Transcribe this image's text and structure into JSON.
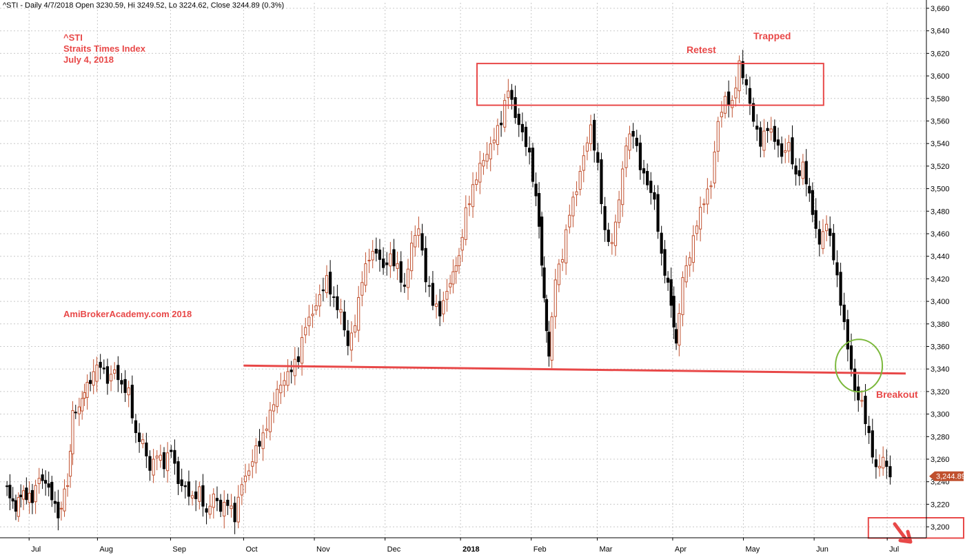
{
  "header": {
    "text": "^STI - Daily 4/7/2018 Open 3230.59, Hi 3249.52, Lo 3224.62, Close 3244.89 (0.3%)"
  },
  "colors": {
    "up": "#c0502e",
    "down": "#000000",
    "annotation": "#e84848",
    "circle": "#7ab83a",
    "grid": "#c8c8c8",
    "badge": "#c0502e"
  },
  "chart_data": {
    "type": "candlestick",
    "title": "^STI Straits Times Index July 4, 2018",
    "ylim": [
      3190,
      3670
    ],
    "y_ticks": [
      3200,
      3220,
      3240,
      3260,
      3280,
      3300,
      3320,
      3340,
      3360,
      3380,
      3400,
      3420,
      3440,
      3460,
      3480,
      3500,
      3520,
      3540,
      3560,
      3580,
      3600,
      3620,
      3640,
      3660
    ],
    "y_tick_labels": [
      "3,200",
      "3,220",
      "3,240",
      "3,260",
      "3,280",
      "3,300",
      "3,320",
      "3,340",
      "3,360",
      "3,380",
      "3,400",
      "3,420",
      "3,440",
      "3,460",
      "3,480",
      "3,500",
      "3,520",
      "3,540",
      "3,560",
      "3,580",
      "3,600",
      "3,620",
      "3,640",
      "3,660"
    ],
    "x_start": "2017-06-23",
    "x_end": "2018-07-04",
    "x_labels": [
      {
        "date": "2017-07-03",
        "label": "Jul",
        "bold": false
      },
      {
        "date": "2017-08-01",
        "label": "Aug",
        "bold": false
      },
      {
        "date": "2017-09-01",
        "label": "Sep",
        "bold": false
      },
      {
        "date": "2017-10-02",
        "label": "Oct",
        "bold": false
      },
      {
        "date": "2017-11-01",
        "label": "Nov",
        "bold": false
      },
      {
        "date": "2017-12-01",
        "label": "Dec",
        "bold": false
      },
      {
        "date": "2018-01-02",
        "label": "2018",
        "bold": true
      },
      {
        "date": "2018-02-01",
        "label": "Feb",
        "bold": false
      },
      {
        "date": "2018-03-01",
        "label": "Mar",
        "bold": false
      },
      {
        "date": "2018-04-02",
        "label": "Apr",
        "bold": false
      },
      {
        "date": "2018-05-02",
        "label": "May",
        "bold": false
      },
      {
        "date": "2018-06-01",
        "label": "Jun",
        "bold": false
      },
      {
        "date": "2018-07-02",
        "label": "Jul",
        "bold": false
      }
    ],
    "last_close": 3244.89,
    "last_close_label": "3,244.89",
    "series_close": [
      [
        "2017-06-23",
        3240
      ],
      [
        "2017-06-28",
        3215
      ],
      [
        "2017-06-30",
        3230
      ],
      [
        "2017-07-05",
        3225
      ],
      [
        "2017-07-08",
        3245
      ],
      [
        "2017-07-12",
        3235
      ],
      [
        "2017-07-16",
        3210
      ],
      [
        "2017-07-20",
        3240
      ],
      [
        "2017-07-22",
        3300
      ],
      [
        "2017-07-25",
        3305
      ],
      [
        "2017-07-27",
        3320
      ],
      [
        "2017-07-31",
        3335
      ],
      [
        "2017-08-03",
        3345
      ],
      [
        "2017-08-06",
        3330
      ],
      [
        "2017-08-09",
        3340
      ],
      [
        "2017-08-12",
        3325
      ],
      [
        "2017-08-15",
        3320
      ],
      [
        "2017-08-18",
        3280
      ],
      [
        "2017-08-21",
        3275
      ],
      [
        "2017-08-24",
        3250
      ],
      [
        "2017-08-27",
        3265
      ],
      [
        "2017-08-30",
        3255
      ],
      [
        "2017-09-02",
        3270
      ],
      [
        "2017-09-05",
        3240
      ],
      [
        "2017-09-08",
        3235
      ],
      [
        "2017-09-11",
        3225
      ],
      [
        "2017-09-14",
        3232
      ],
      [
        "2017-09-17",
        3210
      ],
      [
        "2017-09-20",
        3228
      ],
      [
        "2017-09-23",
        3215
      ],
      [
        "2017-09-26",
        3222
      ],
      [
        "2017-09-29",
        3208
      ],
      [
        "2017-10-02",
        3240
      ],
      [
        "2017-10-05",
        3250
      ],
      [
        "2017-10-08",
        3270
      ],
      [
        "2017-10-11",
        3280
      ],
      [
        "2017-10-14",
        3300
      ],
      [
        "2017-10-17",
        3320
      ],
      [
        "2017-10-20",
        3330
      ],
      [
        "2017-10-23",
        3340
      ],
      [
        "2017-10-26",
        3350
      ],
      [
        "2017-10-29",
        3380
      ],
      [
        "2017-11-01",
        3390
      ],
      [
        "2017-11-04",
        3405
      ],
      [
        "2017-11-07",
        3420
      ],
      [
        "2017-11-10",
        3400
      ],
      [
        "2017-11-13",
        3390
      ],
      [
        "2017-11-16",
        3360
      ],
      [
        "2017-11-19",
        3380
      ],
      [
        "2017-11-22",
        3420
      ],
      [
        "2017-11-25",
        3440
      ],
      [
        "2017-11-28",
        3445
      ],
      [
        "2017-12-01",
        3430
      ],
      [
        "2017-12-04",
        3440
      ],
      [
        "2017-12-07",
        3430
      ],
      [
        "2017-12-10",
        3410
      ],
      [
        "2017-12-13",
        3450
      ],
      [
        "2017-12-16",
        3465
      ],
      [
        "2017-12-19",
        3420
      ],
      [
        "2017-12-22",
        3400
      ],
      [
        "2017-12-25",
        3390
      ],
      [
        "2017-12-28",
        3410
      ],
      [
        "2018-01-02",
        3440
      ],
      [
        "2018-01-05",
        3480
      ],
      [
        "2018-01-08",
        3500
      ],
      [
        "2018-01-11",
        3520
      ],
      [
        "2018-01-14",
        3530
      ],
      [
        "2018-01-17",
        3545
      ],
      [
        "2018-01-20",
        3560
      ],
      [
        "2018-01-23",
        3590
      ],
      [
        "2018-01-26",
        3565
      ],
      [
        "2018-01-29",
        3550
      ],
      [
        "2018-02-01",
        3530
      ],
      [
        "2018-02-05",
        3470
      ],
      [
        "2018-02-07",
        3400
      ],
      [
        "2018-02-09",
        3350
      ],
      [
        "2018-02-12",
        3420
      ],
      [
        "2018-02-15",
        3440
      ],
      [
        "2018-02-18",
        3480
      ],
      [
        "2018-02-21",
        3500
      ],
      [
        "2018-02-24",
        3530
      ],
      [
        "2018-02-27",
        3555
      ],
      [
        "2018-03-02",
        3520
      ],
      [
        "2018-03-05",
        3460
      ],
      [
        "2018-03-08",
        3450
      ],
      [
        "2018-03-11",
        3490
      ],
      [
        "2018-03-14",
        3540
      ],
      [
        "2018-03-17",
        3550
      ],
      [
        "2018-03-20",
        3520
      ],
      [
        "2018-03-23",
        3505
      ],
      [
        "2018-03-26",
        3490
      ],
      [
        "2018-03-29",
        3440
      ],
      [
        "2018-04-02",
        3400
      ],
      [
        "2018-04-04",
        3360
      ],
      [
        "2018-04-07",
        3420
      ],
      [
        "2018-04-10",
        3440
      ],
      [
        "2018-04-13",
        3470
      ],
      [
        "2018-04-16",
        3490
      ],
      [
        "2018-04-19",
        3505
      ],
      [
        "2018-04-22",
        3560
      ],
      [
        "2018-04-25",
        3580
      ],
      [
        "2018-04-28",
        3575
      ],
      [
        "2018-05-01",
        3610
      ],
      [
        "2018-05-04",
        3590
      ],
      [
        "2018-05-07",
        3560
      ],
      [
        "2018-05-10",
        3540
      ],
      [
        "2018-05-13",
        3555
      ],
      [
        "2018-05-16",
        3545
      ],
      [
        "2018-05-19",
        3530
      ],
      [
        "2018-05-22",
        3540
      ],
      [
        "2018-05-25",
        3510
      ],
      [
        "2018-05-28",
        3520
      ],
      [
        "2018-06-01",
        3480
      ],
      [
        "2018-06-04",
        3450
      ],
      [
        "2018-06-07",
        3470
      ],
      [
        "2018-06-10",
        3440
      ],
      [
        "2018-06-13",
        3400
      ],
      [
        "2018-06-16",
        3360
      ],
      [
        "2018-06-19",
        3320
      ],
      [
        "2018-06-22",
        3310
      ],
      [
        "2018-06-25",
        3280
      ],
      [
        "2018-06-28",
        3250
      ],
      [
        "2018-07-01",
        3260
      ],
      [
        "2018-07-04",
        3244.89
      ]
    ]
  },
  "annotations": {
    "title_line1": "^STI",
    "title_line2": "Straits Times Index",
    "title_line3": "July 4, 2018",
    "watermark": "AmiBrokerAcademy.com  2018",
    "retest": "Retest",
    "trapped": "Trapped",
    "breakout": "Breakout"
  }
}
